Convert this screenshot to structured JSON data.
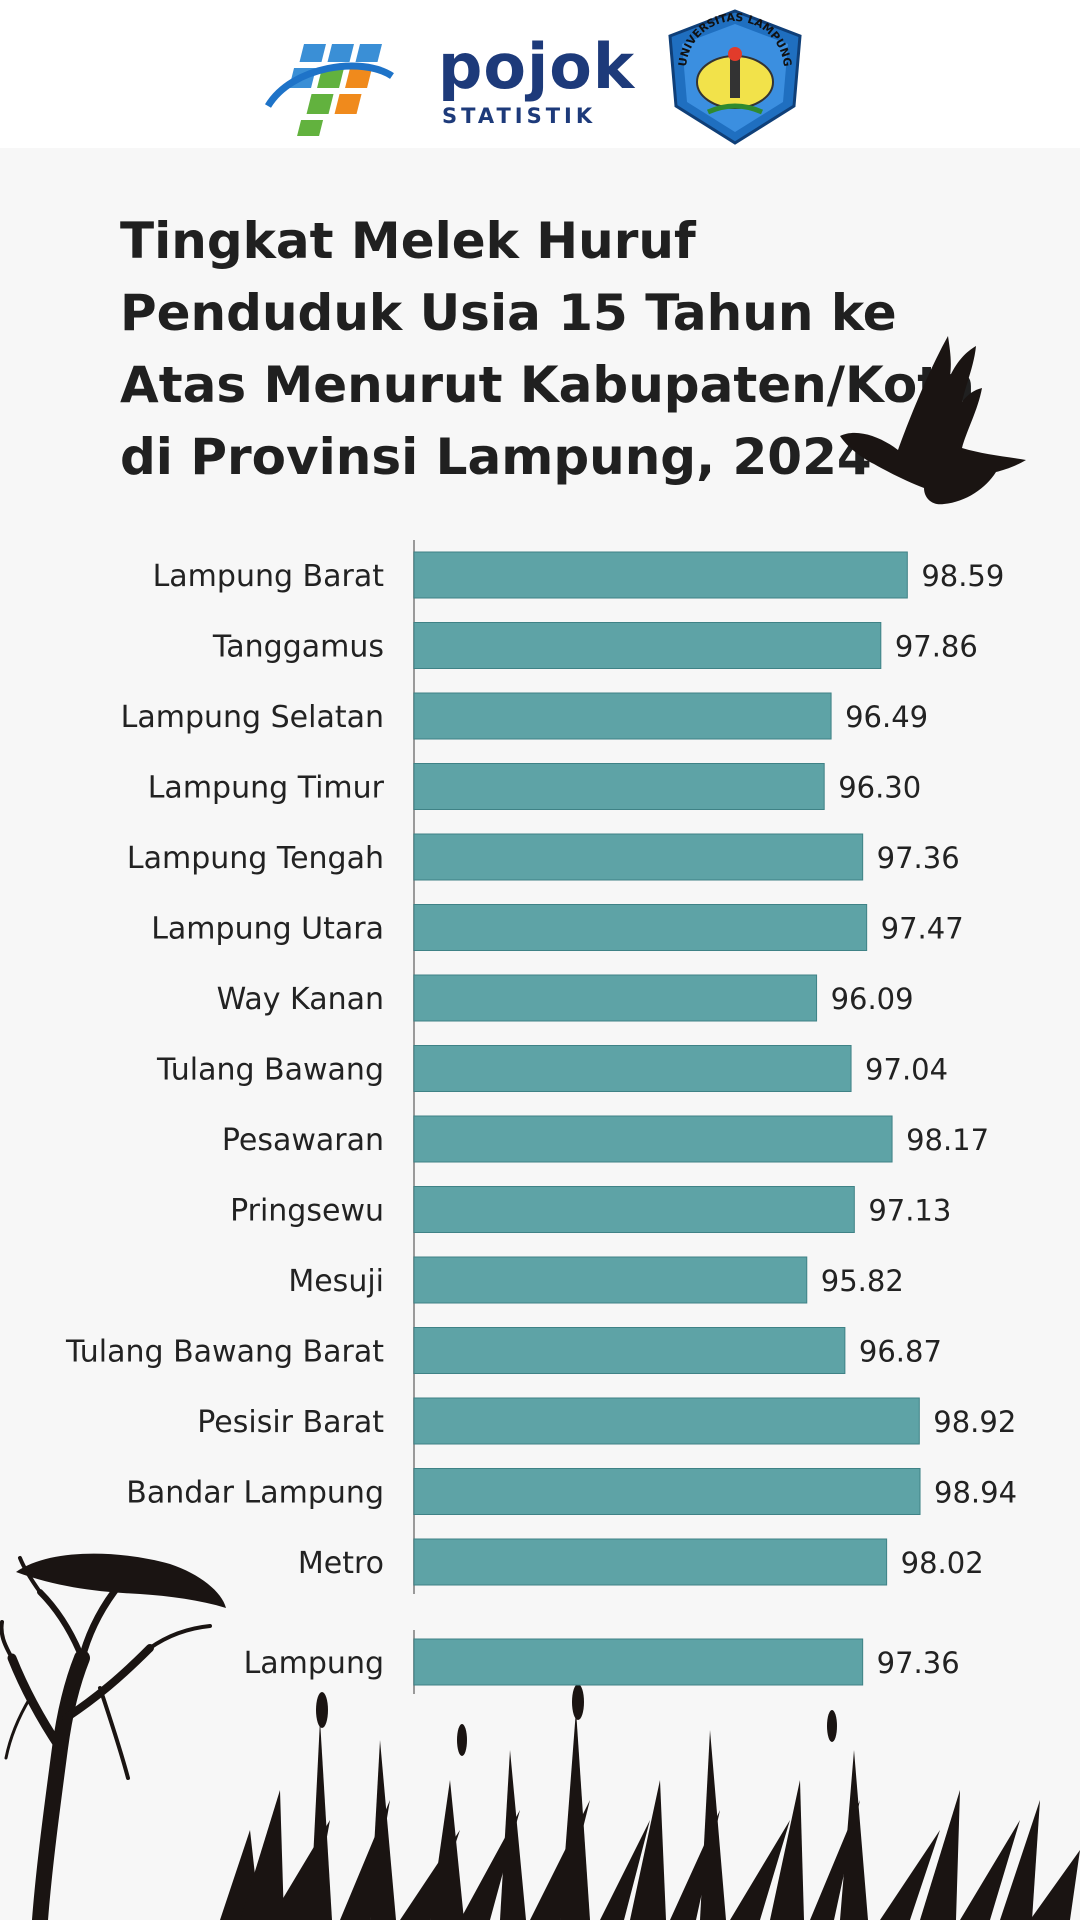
{
  "header": {
    "logos": [
      {
        "name": "bps-logo"
      },
      {
        "name": "pojok-statistik-logo",
        "word": "pojok",
        "subtitle": "STATISTIK"
      },
      {
        "name": "universitas-lampung-logo",
        "ring_text": "UNIVERSITAS LAMPUNG"
      }
    ]
  },
  "colors": {
    "bar": "#5ea3a6",
    "bar_edge": "#3f8286",
    "axis": "#9a9a9a",
    "silhouette": "#1a1412",
    "text": "#222222"
  },
  "chart_data": {
    "type": "bar",
    "orientation": "horizontal",
    "title": "Tingkat Melek Huruf Penduduk Usia 15 Tahun ke Atas Menurut Kabupaten/Kota di Provinsi Lampung, 2024",
    "categories": [
      "Lampung Barat",
      "Tanggamus",
      "Lampung Selatan",
      "Lampung Timur",
      "Lampung Tengah",
      "Lampung Utara",
      "Way Kanan",
      "Tulang Bawang",
      "Pesawaran",
      "Pringsewu",
      "Mesuji",
      "Tulang Bawang Barat",
      "Pesisir Barat",
      "Bandar Lampung",
      "Metro"
    ],
    "values": [
      98.59,
      97.86,
      96.49,
      96.3,
      97.36,
      97.47,
      96.09,
      97.04,
      98.17,
      97.13,
      95.82,
      96.87,
      98.92,
      98.94,
      98.02
    ],
    "value_labels": [
      "98.59",
      "97.86",
      "96.49",
      "96.30",
      "97.36",
      "97.47",
      "96.09",
      "97.04",
      "98.17",
      "97.13",
      "95.82",
      "96.87",
      "98.92",
      "98.94",
      "98.02"
    ],
    "total": {
      "category": "Lampung",
      "value": 97.36,
      "value_label": "97.36"
    },
    "xlabel": "",
    "ylabel": "",
    "grid": false,
    "legend": "none",
    "data_labels": true
  }
}
